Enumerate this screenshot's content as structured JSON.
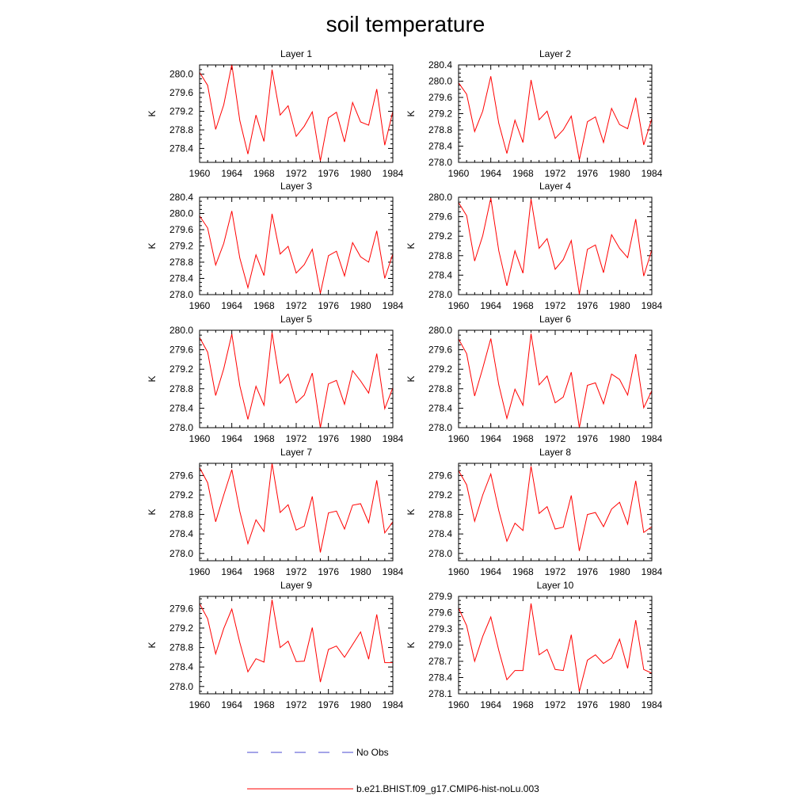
{
  "figure": {
    "title": "soil temperature"
  },
  "legend": {
    "entries": [
      {
        "label": "No Obs",
        "color": "#4a4ad0",
        "style": "dashed"
      },
      {
        "label": "b.e21.BHIST.f09_g17.CMIP6-hist-noLu.003",
        "color": "#ff0000",
        "style": "solid"
      }
    ]
  },
  "chart_data": [
    {
      "type": "line",
      "title": "Layer 1",
      "ylabel": "K",
      "xlabel": "",
      "xlim": [
        1960,
        1984
      ],
      "ylim": [
        278.1,
        280.2
      ],
      "xticks": [
        "1960",
        "1964",
        "1968",
        "1972",
        "1976",
        "1980",
        "1984"
      ],
      "yticks": [
        "278.4",
        "278.8",
        "279.2",
        "279.6",
        "280.0"
      ],
      "grid": false,
      "x": [
        1960,
        1961,
        1962,
        1963,
        1964,
        1965,
        1966,
        1967,
        1968,
        1969,
        1970,
        1971,
        1972,
        1973,
        1974,
        1975,
        1976,
        1977,
        1978,
        1979,
        1980,
        1981,
        1982,
        1983,
        1984
      ],
      "series": [
        {
          "name": "b.e21.BHIST.f09_g17.CMIP6-hist-noLu.003",
          "color": "#ff0000",
          "values": [
            280.04,
            279.76,
            278.81,
            279.34,
            280.21,
            279.0,
            278.28,
            279.12,
            278.55,
            280.1,
            279.12,
            279.32,
            278.66,
            278.88,
            279.19,
            278.13,
            279.06,
            279.18,
            278.54,
            279.39,
            278.97,
            278.9,
            279.68,
            278.47,
            279.2
          ]
        }
      ]
    },
    {
      "type": "line",
      "title": "Layer 2",
      "ylabel": "K",
      "xlabel": "",
      "xlim": [
        1960,
        1984
      ],
      "ylim": [
        278.0,
        280.4
      ],
      "xticks": [
        "1960",
        "1964",
        "1968",
        "1972",
        "1976",
        "1980",
        "1984"
      ],
      "yticks": [
        "278.0",
        "278.4",
        "278.8",
        "279.2",
        "279.6",
        "280.0",
        "280.4"
      ],
      "grid": false,
      "x": [
        1960,
        1961,
        1962,
        1963,
        1964,
        1965,
        1966,
        1967,
        1968,
        1969,
        1970,
        1971,
        1972,
        1973,
        1974,
        1975,
        1976,
        1977,
        1978,
        1979,
        1980,
        1981,
        1982,
        1983,
        1984
      ],
      "series": [
        {
          "name": "b.e21.BHIST.f09_g17.CMIP6-hist-noLu.003",
          "color": "#ff0000",
          "values": [
            279.96,
            279.68,
            278.76,
            279.26,
            280.12,
            278.96,
            278.22,
            279.04,
            278.49,
            280.03,
            279.05,
            279.26,
            278.59,
            278.8,
            279.14,
            278.06,
            279.0,
            279.12,
            278.49,
            279.33,
            278.93,
            278.83,
            279.59,
            278.43,
            279.08
          ]
        }
      ]
    },
    {
      "type": "line",
      "title": "Layer 3",
      "ylabel": "K",
      "xlabel": "",
      "xlim": [
        1960,
        1984
      ],
      "ylim": [
        278.0,
        280.4
      ],
      "xticks": [
        "1960",
        "1964",
        "1968",
        "1972",
        "1976",
        "1980",
        "1984"
      ],
      "yticks": [
        "278.0",
        "278.4",
        "278.8",
        "279.2",
        "279.6",
        "280.0",
        "280.4"
      ],
      "grid": false,
      "x": [
        1960,
        1961,
        1962,
        1963,
        1964,
        1965,
        1966,
        1967,
        1968,
        1969,
        1970,
        1971,
        1972,
        1973,
        1974,
        1975,
        1976,
        1977,
        1978,
        1979,
        1980,
        1981,
        1982,
        1983,
        1984
      ],
      "series": [
        {
          "name": "b.e21.BHIST.f09_g17.CMIP6-hist-noLu.003",
          "color": "#ff0000",
          "values": [
            279.94,
            279.64,
            278.73,
            279.26,
            280.06,
            278.9,
            278.17,
            278.98,
            278.47,
            279.99,
            279.0,
            279.19,
            278.53,
            278.74,
            279.12,
            278.03,
            278.96,
            279.07,
            278.46,
            279.28,
            278.93,
            278.8,
            279.57,
            278.4,
            279.0
          ]
        }
      ]
    },
    {
      "type": "line",
      "title": "Layer 4",
      "ylabel": "K",
      "xlabel": "",
      "xlim": [
        1960,
        1984
      ],
      "ylim": [
        278.0,
        280.0
      ],
      "xticks": [
        "1960",
        "1964",
        "1968",
        "1972",
        "1976",
        "1980",
        "1984"
      ],
      "yticks": [
        "278.0",
        "278.4",
        "278.8",
        "279.2",
        "279.6",
        "280.0"
      ],
      "grid": false,
      "x": [
        1960,
        1961,
        1962,
        1963,
        1964,
        1965,
        1966,
        1967,
        1968,
        1969,
        1970,
        1971,
        1972,
        1973,
        1974,
        1975,
        1976,
        1977,
        1978,
        1979,
        1980,
        1981,
        1982,
        1983,
        1984
      ],
      "series": [
        {
          "name": "b.e21.BHIST.f09_g17.CMIP6-hist-noLu.003",
          "color": "#ff0000",
          "values": [
            279.89,
            279.62,
            278.69,
            279.21,
            279.98,
            278.9,
            278.18,
            278.9,
            278.44,
            279.96,
            278.95,
            279.15,
            278.52,
            278.72,
            279.11,
            278.01,
            278.93,
            279.02,
            278.45,
            279.23,
            278.95,
            278.76,
            279.55,
            278.38,
            278.92
          ]
        }
      ]
    },
    {
      "type": "line",
      "title": "Layer 5",
      "ylabel": "K",
      "xlabel": "",
      "xlim": [
        1960,
        1984
      ],
      "ylim": [
        278.0,
        280.0
      ],
      "xticks": [
        "1960",
        "1964",
        "1968",
        "1972",
        "1976",
        "1980",
        "1984"
      ],
      "yticks": [
        "278.0",
        "278.4",
        "278.8",
        "279.2",
        "279.6",
        "280.0"
      ],
      "grid": false,
      "x": [
        1960,
        1961,
        1962,
        1963,
        1964,
        1965,
        1966,
        1967,
        1968,
        1969,
        1970,
        1971,
        1972,
        1973,
        1974,
        1975,
        1976,
        1977,
        1978,
        1979,
        1980,
        1981,
        1982,
        1983,
        1984
      ],
      "series": [
        {
          "name": "b.e21.BHIST.f09_g17.CMIP6-hist-noLu.003",
          "color": "#ff0000",
          "values": [
            279.85,
            279.55,
            278.66,
            279.21,
            279.92,
            278.86,
            278.17,
            278.85,
            278.46,
            279.95,
            278.91,
            279.1,
            278.51,
            278.67,
            279.12,
            278.0,
            278.9,
            278.97,
            278.48,
            279.17,
            278.96,
            278.71,
            279.52,
            278.39,
            278.82
          ]
        }
      ]
    },
    {
      "type": "line",
      "title": "Layer 6",
      "ylabel": "K",
      "xlabel": "",
      "xlim": [
        1960,
        1984
      ],
      "ylim": [
        278.0,
        280.0
      ],
      "xticks": [
        "1960",
        "1964",
        "1968",
        "1972",
        "1976",
        "1980",
        "1984"
      ],
      "yticks": [
        "278.0",
        "278.4",
        "278.8",
        "279.2",
        "279.6",
        "280.0"
      ],
      "grid": false,
      "x": [
        1960,
        1961,
        1962,
        1963,
        1964,
        1965,
        1966,
        1967,
        1968,
        1969,
        1970,
        1971,
        1972,
        1973,
        1974,
        1975,
        1976,
        1977,
        1978,
        1979,
        1980,
        1981,
        1982,
        1983,
        1984
      ],
      "series": [
        {
          "name": "b.e21.BHIST.f09_g17.CMIP6-hist-noLu.003",
          "color": "#ff0000",
          "values": [
            279.82,
            279.52,
            278.65,
            279.22,
            279.83,
            278.88,
            278.19,
            278.79,
            278.46,
            279.93,
            278.88,
            279.06,
            278.51,
            278.63,
            279.14,
            278.0,
            278.87,
            278.92,
            278.49,
            279.1,
            278.99,
            278.67,
            279.51,
            278.41,
            278.76
          ]
        }
      ]
    },
    {
      "type": "line",
      "title": "Layer 7",
      "ylabel": "K",
      "xlabel": "",
      "xlim": [
        1960,
        1984
      ],
      "ylim": [
        277.85,
        279.85
      ],
      "xticks": [
        "1960",
        "1964",
        "1968",
        "1972",
        "1976",
        "1980",
        "1984"
      ],
      "yticks": [
        "278.0",
        "278.4",
        "278.8",
        "279.2",
        "279.6"
      ],
      "grid": false,
      "x": [
        1960,
        1961,
        1962,
        1963,
        1964,
        1965,
        1966,
        1967,
        1968,
        1969,
        1970,
        1971,
        1972,
        1973,
        1974,
        1975,
        1976,
        1977,
        1978,
        1979,
        1980,
        1981,
        1982,
        1983,
        1984
      ],
      "series": [
        {
          "name": "b.e21.BHIST.f09_g17.CMIP6-hist-noLu.003",
          "color": "#ff0000",
          "values": [
            279.76,
            279.45,
            278.65,
            279.2,
            279.72,
            278.86,
            278.2,
            278.69,
            278.45,
            279.85,
            278.84,
            279.0,
            278.48,
            278.56,
            279.17,
            278.02,
            278.83,
            278.87,
            278.5,
            278.99,
            279.02,
            278.63,
            279.5,
            278.42,
            278.65
          ]
        }
      ]
    },
    {
      "type": "line",
      "title": "Layer 8",
      "ylabel": "K",
      "xlabel": "",
      "xlim": [
        1960,
        1984
      ],
      "ylim": [
        277.85,
        279.85
      ],
      "xticks": [
        "1960",
        "1964",
        "1968",
        "1972",
        "1976",
        "1980",
        "1984"
      ],
      "yticks": [
        "278.0",
        "278.4",
        "278.8",
        "279.2",
        "279.6"
      ],
      "grid": false,
      "x": [
        1960,
        1961,
        1962,
        1963,
        1964,
        1965,
        1966,
        1967,
        1968,
        1969,
        1970,
        1971,
        1972,
        1973,
        1974,
        1975,
        1976,
        1977,
        1978,
        1979,
        1980,
        1981,
        1982,
        1983,
        1984
      ],
      "series": [
        {
          "name": "b.e21.BHIST.f09_g17.CMIP6-hist-noLu.003",
          "color": "#ff0000",
          "values": [
            279.7,
            279.41,
            278.66,
            279.2,
            279.63,
            278.88,
            278.25,
            278.62,
            278.47,
            279.79,
            278.82,
            278.96,
            278.5,
            278.54,
            279.19,
            278.05,
            278.8,
            278.84,
            278.55,
            278.91,
            279.05,
            278.6,
            279.49,
            278.43,
            278.55
          ]
        }
      ]
    },
    {
      "type": "line",
      "title": "Layer 9",
      "ylabel": "K",
      "xlabel": "",
      "xlim": [
        1960,
        1984
      ],
      "ylim": [
        277.85,
        279.85
      ],
      "xticks": [
        "1960",
        "1964",
        "1968",
        "1972",
        "1976",
        "1980",
        "1984"
      ],
      "yticks": [
        "278.0",
        "278.4",
        "278.8",
        "279.2",
        "279.6"
      ],
      "grid": false,
      "x": [
        1960,
        1961,
        1962,
        1963,
        1964,
        1965,
        1966,
        1967,
        1968,
        1969,
        1970,
        1971,
        1972,
        1973,
        1974,
        1975,
        1976,
        1977,
        1978,
        1979,
        1980,
        1981,
        1982,
        1983,
        1984
      ],
      "series": [
        {
          "name": "b.e21.BHIST.f09_g17.CMIP6-hist-noLu.003",
          "color": "#ff0000",
          "values": [
            279.7,
            279.39,
            278.67,
            279.19,
            279.59,
            278.9,
            278.3,
            278.57,
            278.5,
            279.78,
            278.8,
            278.93,
            278.51,
            278.52,
            279.21,
            278.09,
            278.76,
            278.83,
            278.6,
            278.86,
            279.12,
            278.56,
            279.48,
            278.49,
            278.49
          ]
        }
      ]
    },
    {
      "type": "line",
      "title": "Layer 10",
      "ylabel": "K",
      "xlabel": "",
      "xlim": [
        1960,
        1984
      ],
      "ylim": [
        278.1,
        279.9
      ],
      "xticks": [
        "1960",
        "1964",
        "1968",
        "1972",
        "1976",
        "1980",
        "1984"
      ],
      "yticks": [
        "278.1",
        "278.4",
        "278.7",
        "279.0",
        "279.3",
        "279.6",
        "279.9"
      ],
      "grid": false,
      "x": [
        1960,
        1961,
        1962,
        1963,
        1964,
        1965,
        1966,
        1967,
        1968,
        1969,
        1970,
        1971,
        1972,
        1973,
        1974,
        1975,
        1976,
        1977,
        1978,
        1979,
        1980,
        1981,
        1982,
        1983,
        1984
      ],
      "series": [
        {
          "name": "b.e21.BHIST.f09_g17.CMIP6-hist-noLu.003",
          "color": "#ff0000",
          "values": [
            279.68,
            279.36,
            278.7,
            279.16,
            279.52,
            278.9,
            278.36,
            278.53,
            278.53,
            279.77,
            278.82,
            278.92,
            278.55,
            278.53,
            279.19,
            278.14,
            278.72,
            278.82,
            278.66,
            278.76,
            279.11,
            278.57,
            279.46,
            278.55,
            278.48
          ]
        }
      ]
    }
  ]
}
